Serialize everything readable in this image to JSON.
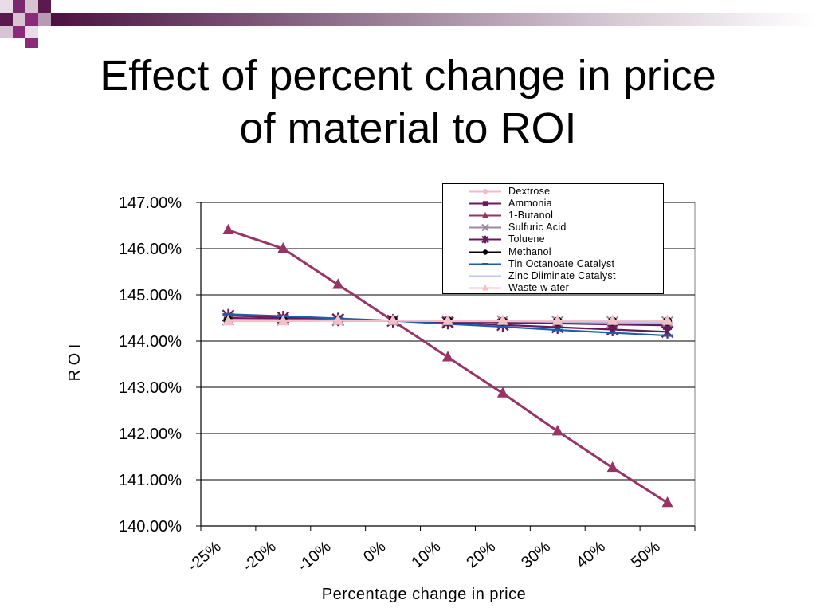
{
  "slide": {
    "title_line1": "Effect of percent change in price",
    "title_line2": "of material to ROI"
  },
  "colors": {
    "deco_dark": "#5a1a4e",
    "deco_purple": "#8a2a78",
    "deco_light": "#c8a8c4"
  },
  "chart_data": {
    "type": "line",
    "title": "",
    "xlabel": "Percentage change in price",
    "ylabel": "R O I",
    "categories": [
      "-25%",
      "-20%",
      "-10%",
      "0%",
      "10%",
      "20%",
      "30%",
      "40%",
      "50%"
    ],
    "ylim": [
      1.4,
      1.47
    ],
    "y_ticks": [
      "140.00%",
      "141.00%",
      "142.00%",
      "143.00%",
      "144.00%",
      "145.00%",
      "146.00%",
      "147.00%"
    ],
    "y_tick_values": [
      1.4,
      1.41,
      1.42,
      1.43,
      1.44,
      1.45,
      1.46,
      1.47
    ],
    "grid": true,
    "legend_position": "top-right",
    "series": [
      {
        "name": "Dextrose",
        "color": "#f2b8d0",
        "marker": "diamond",
        "values": [
          1.4448,
          1.4447,
          1.4445,
          1.4444,
          1.4443,
          1.4442,
          1.4441,
          1.444,
          1.4439
        ]
      },
      {
        "name": "Ammonia",
        "color": "#6a1a5c",
        "marker": "square",
        "values": [
          1.445,
          1.4448,
          1.4446,
          1.4444,
          1.4442,
          1.444,
          1.4438,
          1.4436,
          1.4434
        ]
      },
      {
        "name": "1-Butanol",
        "color": "#993366",
        "marker": "triangle",
        "values": [
          1.464,
          1.46,
          1.4522,
          1.4444,
          1.4365,
          1.4287,
          1.4205,
          1.4126,
          1.405
        ]
      },
      {
        "name": "Sulfuric Acid",
        "color": "#9a8aa0",
        "marker": "x",
        "values": [
          1.4446,
          1.4446,
          1.4445,
          1.4444,
          1.4443,
          1.4443,
          1.4442,
          1.4441,
          1.4441
        ]
      },
      {
        "name": "Toluene",
        "color": "#661a5c",
        "marker": "star",
        "values": [
          1.4455,
          1.4451,
          1.4447,
          1.4444,
          1.444,
          1.4435,
          1.443,
          1.4425,
          1.442
        ]
      },
      {
        "name": "Methanol",
        "color": "#000000",
        "marker": "circle",
        "values": [
          1.4445,
          1.4445,
          1.4444,
          1.4444,
          1.4444,
          1.4443,
          1.4443,
          1.4443,
          1.4443
        ]
      },
      {
        "name": "Tin Octanoate Catalyst",
        "color": "#1a5fa8",
        "marker": "dash",
        "values": [
          1.4458,
          1.4454,
          1.4449,
          1.4444,
          1.4437,
          1.4431,
          1.4424,
          1.4418,
          1.4412
        ]
      },
      {
        "name": "Zinc Diiminate Catalyst",
        "color": "#b8c8f0",
        "marker": "none",
        "values": [
          1.4446,
          1.4445,
          1.4445,
          1.4444,
          1.4443,
          1.4443,
          1.4442,
          1.4442,
          1.4441
        ]
      },
      {
        "name": "Waste w ater",
        "color": "#f4c0c8",
        "marker": "triangle",
        "values": [
          1.4443,
          1.4443,
          1.4444,
          1.4444,
          1.4444,
          1.4444,
          1.4444,
          1.4444,
          1.4444
        ]
      }
    ]
  }
}
